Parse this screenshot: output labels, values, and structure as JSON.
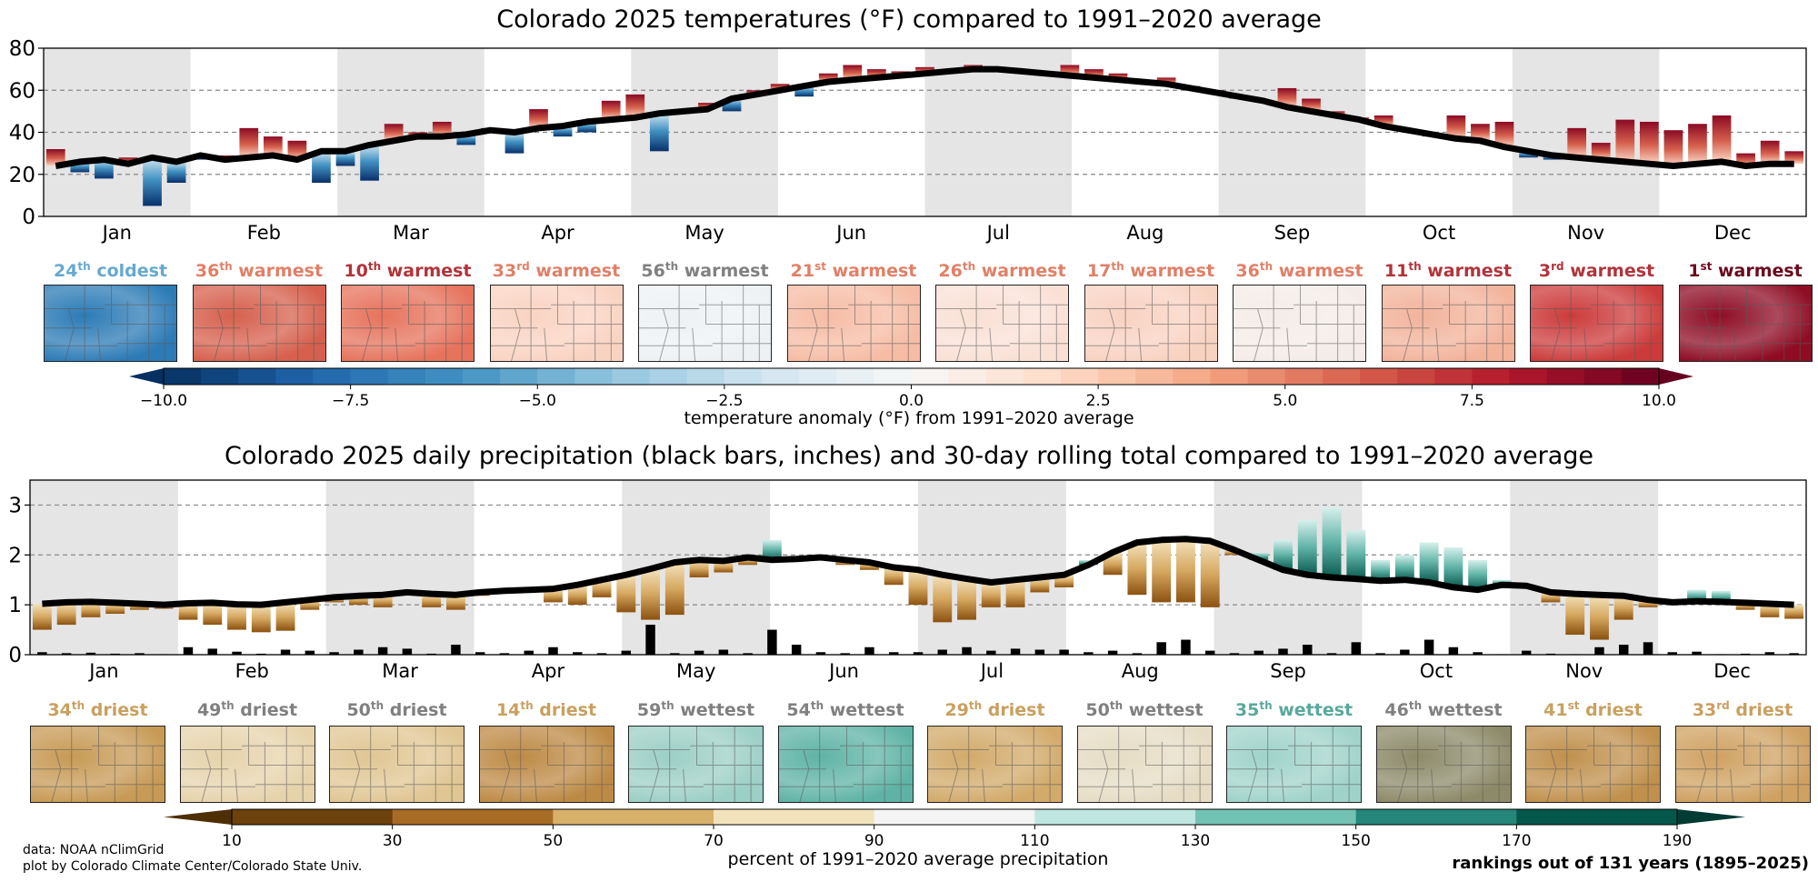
{
  "temperature": {
    "title": "Colorado 2025 temperatures (°F) compared to 1991–2020 average",
    "colorbar_label": "temperature anomaly (°F) from 1991–2020 average",
    "colorbar_ticks": [
      "−10.0",
      "−7.5",
      "−5.0",
      "−2.5",
      "0.0",
      "2.5",
      "5.0",
      "7.5",
      "10.0"
    ],
    "months": [
      {
        "month": "Jan",
        "rank": "24",
        "suffix": "th",
        "label": "coldest",
        "color": "#67a9cf",
        "base": "#2c7bb6",
        "anom": -2.8
      },
      {
        "month": "Feb",
        "rank": "36",
        "suffix": "th",
        "label": "warmest",
        "color": "#e08067",
        "base": "#d6604d",
        "anom": 2.2
      },
      {
        "month": "Mar",
        "rank": "10",
        "suffix": "th",
        "label": "warmest",
        "color": "#b2333a",
        "base": "#e6735c",
        "anom": 3.6
      },
      {
        "month": "Apr",
        "rank": "33",
        "suffix": "rd",
        "label": "warmest",
        "color": "#e08067",
        "base": "#f9d3c2",
        "anom": 1.0
      },
      {
        "month": "May",
        "rank": "56",
        "suffix": "th",
        "label": "warmest",
        "color": "#808080",
        "base": "#eef1f4",
        "anom": 0.2
      },
      {
        "month": "Jun",
        "rank": "21",
        "suffix": "st",
        "label": "warmest",
        "color": "#e08067",
        "base": "#f6bca4",
        "anom": 1.6
      },
      {
        "month": "Jul",
        "rank": "26",
        "suffix": "th",
        "label": "warmest",
        "color": "#e08067",
        "base": "#f9e0d5",
        "anom": 0.8
      },
      {
        "month": "Aug",
        "rank": "17",
        "suffix": "th",
        "label": "warmest",
        "color": "#e08067",
        "base": "#f8d2c1",
        "anom": 1.0
      },
      {
        "month": "Sep",
        "rank": "36",
        "suffix": "th",
        "label": "warmest",
        "color": "#e08067",
        "base": "#f4ece8",
        "anom": 0.4
      },
      {
        "month": "Oct",
        "rank": "11",
        "suffix": "th",
        "label": "warmest",
        "color": "#b2333a",
        "base": "#f2b39b",
        "anom": 2.2
      },
      {
        "month": "Nov",
        "rank": "3",
        "suffix": "rd",
        "label": "warmest",
        "color": "#b2333a",
        "base": "#cc3b3b",
        "anom": 6.5
      },
      {
        "month": "Dec",
        "rank": "1",
        "suffix": "st",
        "label": "warmest",
        "color": "#6b0a1e",
        "base": "#8e0d25",
        "anom": 8.8
      }
    ]
  },
  "precipitation": {
    "title": "Colorado 2025 daily precipitation (black bars, inches) and 30-day rolling total compared to 1991–2020 average",
    "colorbar_label": "percent of 1991–2020 average precipitation",
    "colorbar_ticks": [
      "10",
      "30",
      "50",
      "70",
      "90",
      "110",
      "130",
      "150",
      "170",
      "190"
    ],
    "months": [
      {
        "month": "Jan",
        "rank": "34",
        "suffix": "th",
        "label": "driest",
        "color": "#c9a060",
        "base": "#c79a55"
      },
      {
        "month": "Feb",
        "rank": "49",
        "suffix": "th",
        "label": "driest",
        "color": "#808080",
        "base": "#e6d3ab"
      },
      {
        "month": "Mar",
        "rank": "50",
        "suffix": "th",
        "label": "driest",
        "color": "#808080",
        "base": "#e0c693"
      },
      {
        "month": "Apr",
        "rank": "14",
        "suffix": "th",
        "label": "driest",
        "color": "#c9a060",
        "base": "#bd8a45"
      },
      {
        "month": "May",
        "rank": "59",
        "suffix": "th",
        "label": "wettest",
        "color": "#808080",
        "base": "#9ccfc5"
      },
      {
        "month": "Jun",
        "rank": "54",
        "suffix": "th",
        "label": "wettest",
        "color": "#808080",
        "base": "#5fb3a6"
      },
      {
        "month": "Jul",
        "rank": "29",
        "suffix": "th",
        "label": "driest",
        "color": "#c9a060",
        "base": "#d2aa6a"
      },
      {
        "month": "Aug",
        "rank": "50",
        "suffix": "th",
        "label": "wettest",
        "color": "#808080",
        "base": "#e6dcc4"
      },
      {
        "month": "Sep",
        "rank": "35",
        "suffix": "th",
        "label": "wettest",
        "color": "#5aa89c",
        "base": "#9fd3c9"
      },
      {
        "month": "Oct",
        "rank": "46",
        "suffix": "th",
        "label": "wettest",
        "color": "#808080",
        "base": "#8c8a68"
      },
      {
        "month": "Nov",
        "rank": "41",
        "suffix": "st",
        "label": "driest",
        "color": "#c9a060",
        "base": "#c0904c"
      },
      {
        "month": "Dec",
        "rank": "33",
        "suffix": "rd",
        "label": "driest",
        "color": "#c9a060",
        "base": "#cfa162"
      }
    ]
  },
  "footer": {
    "credit_line1": "data: NOAA nClimGrid",
    "credit_line2": "plot by Colorado Climate Center/Colorado State Univ.",
    "rank_note": "rankings out of 131 years (1895–2025)"
  },
  "chart_data": [
    {
      "type": "bar",
      "title": "Colorado 2025 temperatures (°F) compared to 1991–2020 average",
      "xlabel": "",
      "ylabel": "",
      "ylim": [
        0,
        80
      ],
      "yticks": [
        0,
        20,
        40,
        60,
        80
      ],
      "grid": "dashed horizontal at 20, 40, 60",
      "categories": [
        "Jan",
        "Feb",
        "Mar",
        "Apr",
        "May",
        "Jun",
        "Jul",
        "Aug",
        "Sep",
        "Oct",
        "Nov",
        "Dec"
      ],
      "sample_interval_days": 5,
      "series": [
        {
          "name": "1991–2020 daily average (black line)",
          "values": [
            24,
            26,
            27,
            25,
            28,
            26,
            29,
            27,
            28,
            29,
            27,
            31,
            31,
            34,
            36,
            38,
            38,
            39,
            41,
            40,
            42,
            43,
            45,
            46,
            47,
            49,
            50,
            51,
            56,
            58,
            60,
            62,
            64,
            65,
            66,
            67,
            68,
            69,
            70,
            70,
            69,
            68,
            67,
            66,
            65,
            64,
            63,
            61,
            59,
            57,
            55,
            52,
            50,
            48,
            46,
            43,
            41,
            39,
            37,
            36,
            33,
            31,
            29,
            28,
            27,
            26,
            25,
            24,
            25,
            26,
            24,
            25,
            25
          ]
        },
        {
          "name": "2025 daily temperature (bars)",
          "values": [
            32,
            21,
            18,
            28,
            5,
            16,
            27,
            29,
            42,
            38,
            36,
            16,
            24,
            17,
            44,
            40,
            45,
            34,
            42,
            30,
            51,
            38,
            40,
            55,
            58,
            31,
            50,
            54,
            50,
            60,
            63,
            57,
            68,
            72,
            70,
            69,
            71,
            69,
            72,
            70,
            70,
            68,
            72,
            70,
            68,
            65,
            66,
            62,
            60,
            56,
            55,
            61,
            56,
            50,
            47,
            48,
            41,
            38,
            48,
            44,
            45,
            28,
            27,
            42,
            35,
            46,
            45,
            41,
            44,
            48,
            30,
            36,
            31
          ]
        }
      ]
    },
    {
      "type": "bar",
      "title": "Colorado 2025 daily precipitation (black bars, inches) and 30-day rolling total compared to 1991–2020 average",
      "xlabel": "",
      "ylabel": "",
      "ylim": [
        0,
        3.5
      ],
      "yticks": [
        0,
        1,
        2,
        3
      ],
      "grid": "dashed horizontal at 1, 2, 3",
      "categories": [
        "Jan",
        "Feb",
        "Mar",
        "Apr",
        "May",
        "Jun",
        "Jul",
        "Aug",
        "Sep",
        "Oct",
        "Nov",
        "Dec"
      ],
      "sample_interval_days": 5,
      "series": [
        {
          "name": "1991–2020 30-day rolling average total (black line)",
          "values": [
            1.02,
            1.05,
            1.06,
            1.04,
            1.02,
            1.0,
            1.03,
            1.04,
            1.01,
            1.0,
            1.05,
            1.1,
            1.15,
            1.18,
            1.2,
            1.25,
            1.22,
            1.2,
            1.25,
            1.28,
            1.3,
            1.32,
            1.4,
            1.5,
            1.6,
            1.72,
            1.85,
            1.9,
            1.88,
            1.95,
            1.9,
            1.92,
            1.95,
            1.9,
            1.85,
            1.75,
            1.7,
            1.6,
            1.52,
            1.45,
            1.5,
            1.55,
            1.6,
            1.8,
            2.05,
            2.25,
            2.3,
            2.32,
            2.28,
            2.1,
            1.9,
            1.7,
            1.6,
            1.55,
            1.52,
            1.48,
            1.5,
            1.45,
            1.35,
            1.3,
            1.4,
            1.38,
            1.25,
            1.22,
            1.2,
            1.18,
            1.1,
            1.05,
            1.07,
            1.06,
            1.04,
            1.02,
            1.0
          ]
        },
        {
          "name": "2025 30-day rolling total (colored bars)",
          "values": [
            0.5,
            0.6,
            0.75,
            0.82,
            0.9,
            0.92,
            0.7,
            0.6,
            0.5,
            0.45,
            0.48,
            0.9,
            1.05,
            1.0,
            0.95,
            1.25,
            0.95,
            0.9,
            1.18,
            1.3,
            1.25,
            1.05,
            1.0,
            1.15,
            0.85,
            0.7,
            0.8,
            1.55,
            1.65,
            1.8,
            2.3,
            1.95,
            1.9,
            1.8,
            1.7,
            1.4,
            1.0,
            0.65,
            0.7,
            0.95,
            0.95,
            1.25,
            1.35,
            1.9,
            1.6,
            1.2,
            1.05,
            1.05,
            0.95,
            2.0,
            2.05,
            2.3,
            2.7,
            2.95,
            2.5,
            1.9,
            2.0,
            2.25,
            2.15,
            1.9,
            1.5,
            1.35,
            1.05,
            0.4,
            0.3,
            0.7,
            0.95,
            1.0,
            1.3,
            1.28,
            0.9,
            0.75,
            0.72
          ]
        },
        {
          "name": "2025 daily precipitation (black bars)",
          "values": [
            0.05,
            0.03,
            0.04,
            0.02,
            0.03,
            0.01,
            0.15,
            0.12,
            0.06,
            0.02,
            0.1,
            0.08,
            0.05,
            0.1,
            0.15,
            0.12,
            0.02,
            0.2,
            0.05,
            0.03,
            0.08,
            0.15,
            0.05,
            0.03,
            0.08,
            0.6,
            0.03,
            0.08,
            0.1,
            0.03,
            0.5,
            0.2,
            0.05,
            0.03,
            0.15,
            0.05,
            0.05,
            0.1,
            0.15,
            0.08,
            0.12,
            0.1,
            0.1,
            0.05,
            0.08,
            0.03,
            0.25,
            0.3,
            0.08,
            0.03,
            0.08,
            0.12,
            0.2,
            0.03,
            0.25,
            0.03,
            0.1,
            0.3,
            0.15,
            0.05,
            0.01,
            0.08,
            0.02,
            0.01,
            0.15,
            0.2,
            0.25,
            0.05,
            0.06,
            0.01,
            0.02,
            0.05,
            0.03
          ]
        }
      ]
    }
  ]
}
